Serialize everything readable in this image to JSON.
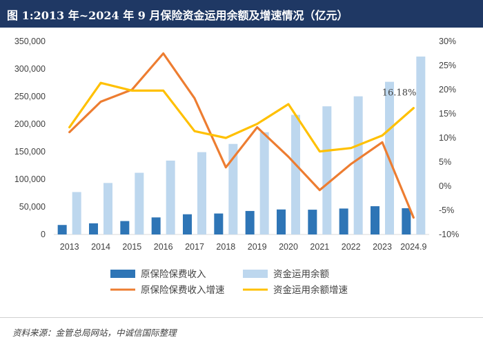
{
  "title": "图 1:2013 年~2024 年 9 月保险资金运用余额及增速情况（亿元）",
  "source": "资料来源：金管总局网站，中诚信国际整理",
  "chart_data": {
    "type": "bar",
    "categories": [
      "2013",
      "2014",
      "2015",
      "2016",
      "2017",
      "2018",
      "2019",
      "2020",
      "2021",
      "2022",
      "2023",
      "2024.9"
    ],
    "y_left": {
      "ticks": [
        "0",
        "50,000",
        "100,000",
        "150,000",
        "200,000",
        "250,000",
        "300,000",
        "350,000"
      ],
      "ylim": [
        0,
        350000
      ]
    },
    "y_right": {
      "ticks": [
        "-10%",
        "-5%",
        "0%",
        "5%",
        "10%",
        "15%",
        "20%",
        "25%",
        "30%"
      ],
      "ylim": [
        -10,
        30
      ]
    },
    "series": [
      {
        "name": "原保险保费收入",
        "type": "bar",
        "axis": "left",
        "color": "#2e75b6",
        "values": [
          17200,
          20200,
          24300,
          30900,
          36600,
          38000,
          42600,
          45300,
          44900,
          47000,
          51200,
          47600
        ]
      },
      {
        "name": "资金运用余额",
        "type": "bar",
        "axis": "left",
        "color": "#bdd7ee",
        "values": [
          76900,
          93300,
          111800,
          133900,
          149200,
          164100,
          185300,
          216800,
          232300,
          250400,
          276700,
          322500
        ]
      },
      {
        "name": "原保险保费收入增速",
        "type": "line",
        "axis": "right",
        "color": "#ed7d31",
        "values": [
          11.2,
          17.5,
          20.0,
          27.5,
          18.2,
          3.9,
          12.2,
          6.1,
          -0.8,
          4.6,
          9.1,
          -6.5
        ]
      },
      {
        "name": "资金运用余额增速",
        "type": "line",
        "axis": "right",
        "color": "#ffc000",
        "values": [
          12.2,
          21.4,
          19.8,
          19.8,
          11.4,
          10.0,
          12.9,
          17.0,
          7.2,
          7.9,
          10.5,
          16.18
        ]
      }
    ],
    "annotations": [
      {
        "series": "资金运用余额增速",
        "index": 11,
        "text": "16.18%"
      }
    ],
    "grid": false,
    "legend": "bottom"
  }
}
